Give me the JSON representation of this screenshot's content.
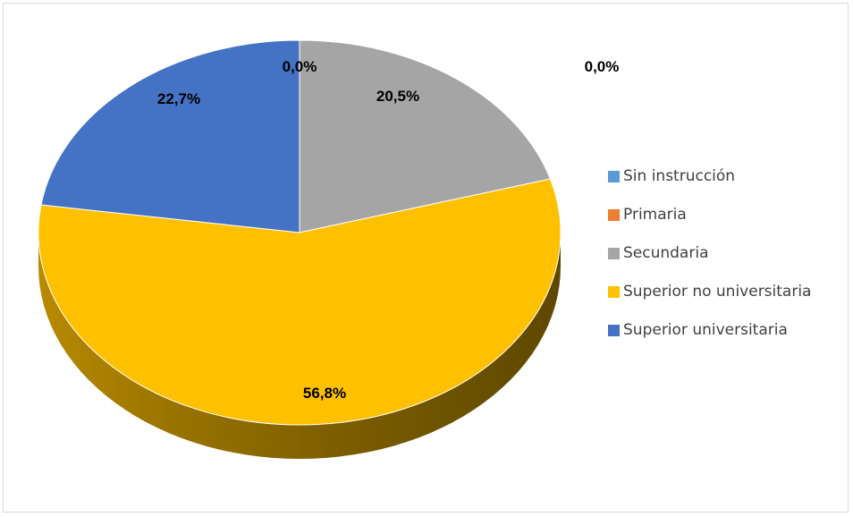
{
  "chart_data": {
    "type": "pie",
    "title": "",
    "categories": [
      "Sin instrucción",
      "Primaria",
      "Secundaria",
      "Superior no universitaria",
      "Superior universitaria"
    ],
    "values": [
      0.0,
      0.0,
      20.5,
      56.8,
      22.7
    ],
    "data_labels": [
      "0,0%",
      "0,0%",
      "20,5%",
      "56,8%",
      "22,7%"
    ],
    "colors": [
      "#5b9bd5",
      "#ed7d31",
      "#a5a5a5",
      "#ffc000",
      "#4472c4"
    ],
    "side_colors": [
      "#2e5f8a",
      "#9a4d17",
      "#6b6b6b",
      "#7a5c00",
      "#2a4a85"
    ],
    "legend_position": "right",
    "style": "3d"
  }
}
